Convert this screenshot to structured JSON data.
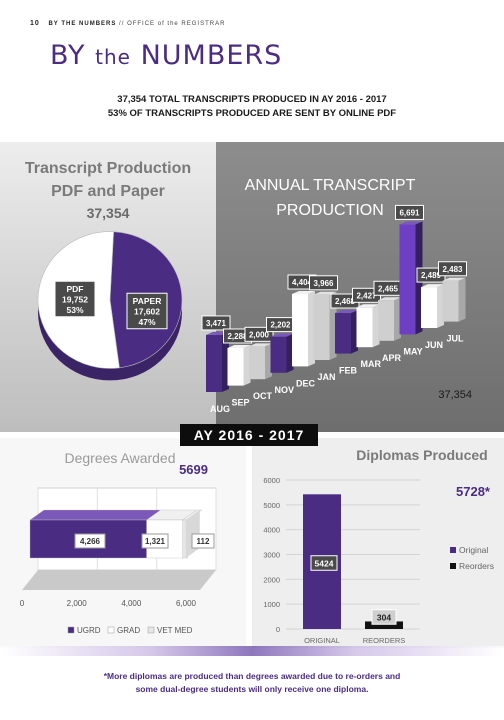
{
  "header": {
    "page_number": "10",
    "section": "BY THE NUMBERS",
    "separator": "//",
    "office": "OFFICE of the REGISTRAR"
  },
  "title": {
    "part1": "BY",
    "part2": "the",
    "part3": "NUMBERS"
  },
  "summary": {
    "line1": "37,354 TOTAL TRANSCRIPTS PRODUCED IN AY 2016 - 2017",
    "line2": "53% OF TRANSCRIPTS PRODUCED ARE SENT BY ONLINE PDF"
  },
  "banner": "AY 2016 - 2017",
  "footnote": {
    "line1": "*More diplomas are produced than degrees awarded due to re-orders and",
    "line2": "some dual-degree students will only receive one diploma."
  },
  "colors": {
    "purple": "#4b2c83",
    "purple_light": "#6e4ba8",
    "white": "#ffffff",
    "grey": "#cfcfcf"
  },
  "chart_data": [
    {
      "type": "pie",
      "title": "Transcript Production",
      "subtitle": "PDF and Paper",
      "total_label": "37,354",
      "slices": [
        {
          "name": "PDF",
          "value": 19752,
          "value_label": "19,752",
          "pct_label": "53%",
          "color": "#ffffff"
        },
        {
          "name": "PAPER",
          "value": 17602,
          "value_label": "17,602",
          "pct_label": "47%",
          "color": "#4b2c83"
        }
      ]
    },
    {
      "type": "bar",
      "title": "ANNUAL TRANSCRIPT",
      "subtitle": "PRODUCTION",
      "total_label": "37,354",
      "categories": [
        "AUG",
        "SEP",
        "OCT",
        "NOV",
        "DEC",
        "JAN",
        "FEB",
        "MAR",
        "APR",
        "MAY",
        "JUN",
        "JUL"
      ],
      "values": [
        3471,
        2288,
        2000,
        2202,
        4404,
        3966,
        2468,
        2427,
        2465,
        6691,
        2489,
        2483
      ],
      "value_labels": [
        "3,471",
        "2,288",
        "2,000",
        "2,202",
        "4,404",
        "3,966",
        "2,468",
        "2,427",
        "2,465",
        "6,691",
        "2,489",
        "2,483"
      ],
      "colors": [
        "#4b2c83",
        "#ffffff",
        "#cfcfcf",
        "#4b2c83",
        "#ffffff",
        "#cfcfcf",
        "#4b2c83",
        "#ffffff",
        "#cfcfcf",
        "#6e3fc4",
        "#ffffff",
        "#cfcfcf"
      ]
    },
    {
      "type": "bar",
      "orientation": "horizontal-stacked",
      "title": "Degrees Awarded",
      "total_label": "5699",
      "series": [
        {
          "name": "UGRD",
          "value": 4266,
          "value_label": "4,266",
          "color": "#4b2c83"
        },
        {
          "name": "GRAD",
          "value": 1321,
          "value_label": "1,321",
          "color": "#ffffff"
        },
        {
          "name": "VET MED",
          "value": 112,
          "value_label": "112",
          "color": "#e6e6e6"
        }
      ],
      "x_ticks": [
        "0",
        "2,000",
        "4,000",
        "6,000"
      ],
      "xlim": [
        0,
        6000
      ]
    },
    {
      "type": "bar",
      "title": "Diplomas Produced",
      "total_label": "5728*",
      "categories": [
        "ORIGINAL",
        "REORDERS"
      ],
      "series": [
        {
          "name": "Original",
          "values": [
            5424,
            0
          ],
          "color": "#4b2c83"
        },
        {
          "name": "Reorders",
          "values": [
            0,
            304
          ],
          "color": "#111111"
        }
      ],
      "value_labels": [
        "5424",
        "304"
      ],
      "y_ticks": [
        "0",
        "1000",
        "2000",
        "3000",
        "4000",
        "5000",
        "6000"
      ],
      "ylim": [
        0,
        6000
      ],
      "grid": true
    }
  ]
}
